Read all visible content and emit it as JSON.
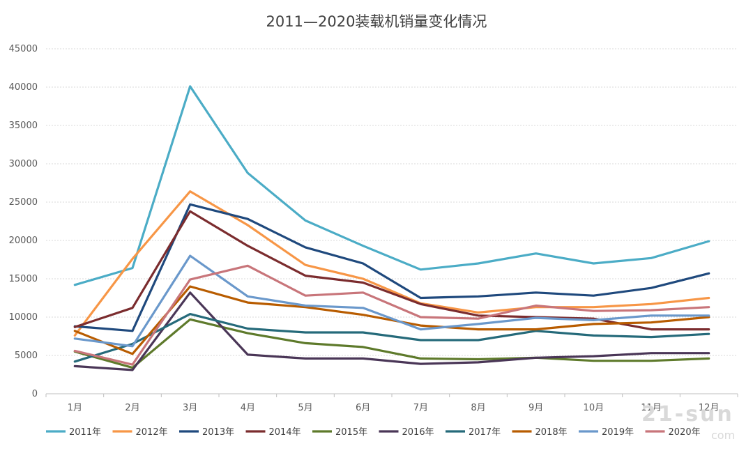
{
  "chart_data": {
    "type": "line",
    "title": "2011—2020装载机销量变化情况",
    "xlabel": "",
    "ylabel": "",
    "ylim": [
      0,
      45000
    ],
    "yticks": [
      0,
      5000,
      10000,
      15000,
      20000,
      25000,
      30000,
      35000,
      40000,
      45000
    ],
    "grid": true,
    "legend_position": "bottom",
    "categories": [
      "1月",
      "2月",
      "3月",
      "4月",
      "5月",
      "6月",
      "7月",
      "8月",
      "9月",
      "10月",
      "11月",
      "12月"
    ],
    "series": [
      {
        "name": "2011年",
        "color": "#4bacc6",
        "values": [
          14200,
          16400,
          40100,
          28800,
          22600,
          19300,
          16200,
          17000,
          18300,
          17000,
          17700,
          19900
        ]
      },
      {
        "name": "2012年",
        "color": "#f79646",
        "values": [
          7600,
          17600,
          26400,
          22000,
          16800,
          15000,
          11800,
          10600,
          11300,
          11300,
          11700,
          12500
        ]
      },
      {
        "name": "2013年",
        "color": "#1f497d",
        "values": [
          8800,
          8200,
          24700,
          22800,
          19100,
          17000,
          12500,
          12700,
          13200,
          12800,
          13800,
          15700
        ]
      },
      {
        "name": "2014年",
        "color": "#7b2c2e",
        "values": [
          8700,
          11200,
          23800,
          19300,
          15400,
          14500,
          11700,
          10200,
          10000,
          9800,
          8400,
          8400
        ]
      },
      {
        "name": "2015年",
        "color": "#5e7a2b",
        "values": [
          5500,
          3400,
          9700,
          7900,
          6600,
          6100,
          4600,
          4500,
          4700,
          4300,
          4300,
          4600
        ]
      },
      {
        "name": "2016年",
        "color": "#4a3657",
        "values": [
          3600,
          3100,
          13200,
          5100,
          4600,
          4600,
          3900,
          4100,
          4700,
          4900,
          5300,
          5300
        ]
      },
      {
        "name": "2017年",
        "color": "#256a7a",
        "values": [
          4200,
          6500,
          10400,
          8500,
          8000,
          8000,
          7000,
          7000,
          8200,
          7600,
          7400,
          7800
        ]
      },
      {
        "name": "2018年",
        "color": "#b85c00",
        "values": [
          8200,
          5200,
          14000,
          11900,
          11300,
          10300,
          8900,
          8400,
          8400,
          9100,
          9300,
          10000
        ]
      },
      {
        "name": "2019年",
        "color": "#6a98cb",
        "values": [
          7200,
          6200,
          18000,
          12700,
          11500,
          11200,
          8400,
          9100,
          9900,
          9600,
          10200,
          10200
        ]
      },
      {
        "name": "2020年",
        "color": "#c8757a",
        "values": [
          5600,
          3800,
          14900,
          16700,
          12800,
          13200,
          10000,
          9800,
          11500,
          10800,
          10900,
          11300
        ]
      }
    ]
  },
  "watermark": {
    "text": "21-sun",
    "sub": "com"
  }
}
